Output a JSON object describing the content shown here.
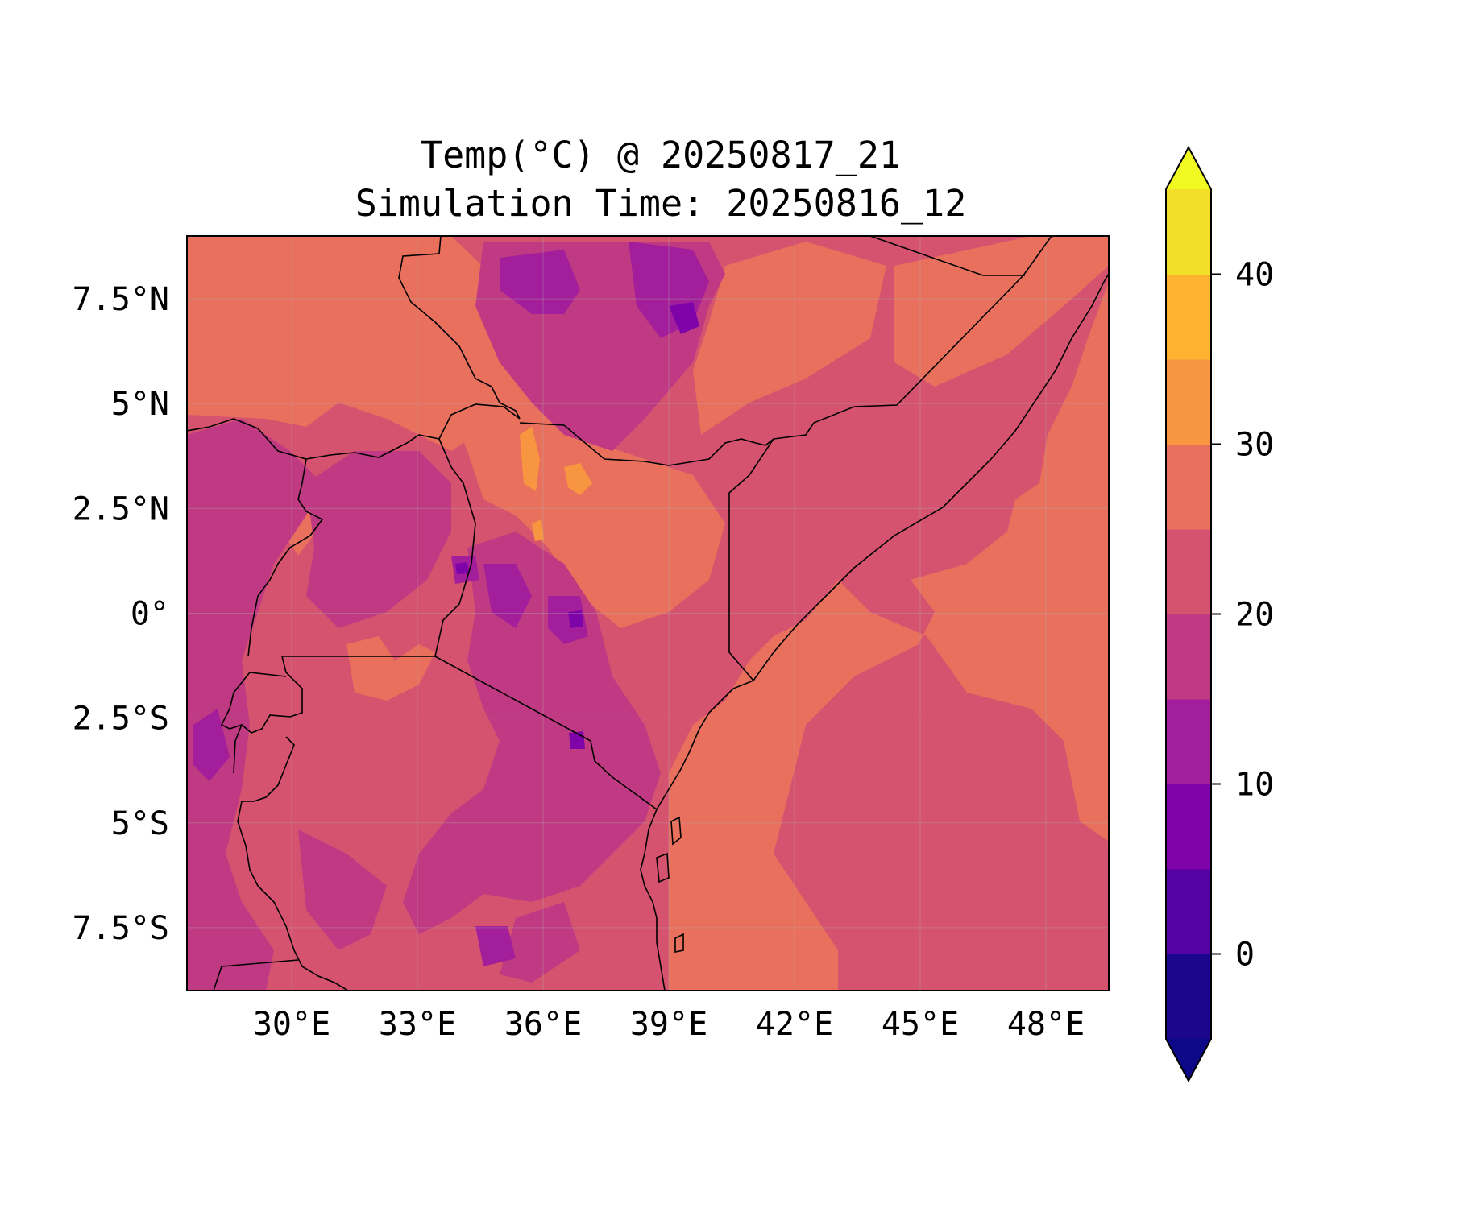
{
  "title": {
    "line1": "Temp(°C) @ 20250817_21",
    "line2": "Simulation Time: 20250816_12"
  },
  "map": {
    "region": "East Africa",
    "lon_range": [
      27.5,
      49.5
    ],
    "lat_range": [
      -9,
      9
    ],
    "lon_ticks": [
      {
        "value": 30,
        "label": "30°E"
      },
      {
        "value": 33,
        "label": "33°E"
      },
      {
        "value": 36,
        "label": "36°E"
      },
      {
        "value": 39,
        "label": "39°E"
      },
      {
        "value": 42,
        "label": "42°E"
      },
      {
        "value": 45,
        "label": "45°E"
      },
      {
        "value": 48,
        "label": "48°E"
      }
    ],
    "lat_ticks": [
      {
        "value": 7.5,
        "label": "7.5°N"
      },
      {
        "value": 5,
        "label": "5°N"
      },
      {
        "value": 2.5,
        "label": "2.5°N"
      },
      {
        "value": 0,
        "label": "0°"
      },
      {
        "value": -2.5,
        "label": "2.5°S"
      },
      {
        "value": -5,
        "label": "5°S"
      },
      {
        "value": -7.5,
        "label": "7.5°S"
      }
    ],
    "gridlines": true,
    "field": "temperature",
    "colormap": "plasma"
  },
  "colorbar": {
    "levels": [
      -5,
      0,
      5,
      10,
      15,
      20,
      25,
      30,
      35,
      40,
      45
    ],
    "extend": "both",
    "tick_values": [
      {
        "value": 0,
        "label": "0"
      },
      {
        "value": 10,
        "label": "10"
      },
      {
        "value": 20,
        "label": "20"
      },
      {
        "value": 30,
        "label": "30"
      },
      {
        "value": 40,
        "label": "40"
      }
    ],
    "colors": [
      "#1b068d",
      "#5302a3",
      "#7e03a8",
      "#a31e9a",
      "#c03a83",
      "#d5536f",
      "#e8705d",
      "#f89540",
      "#fdb32f",
      "#f4df28"
    ],
    "under_color": "#0d0887",
    "over_color": "#f0f921"
  }
}
